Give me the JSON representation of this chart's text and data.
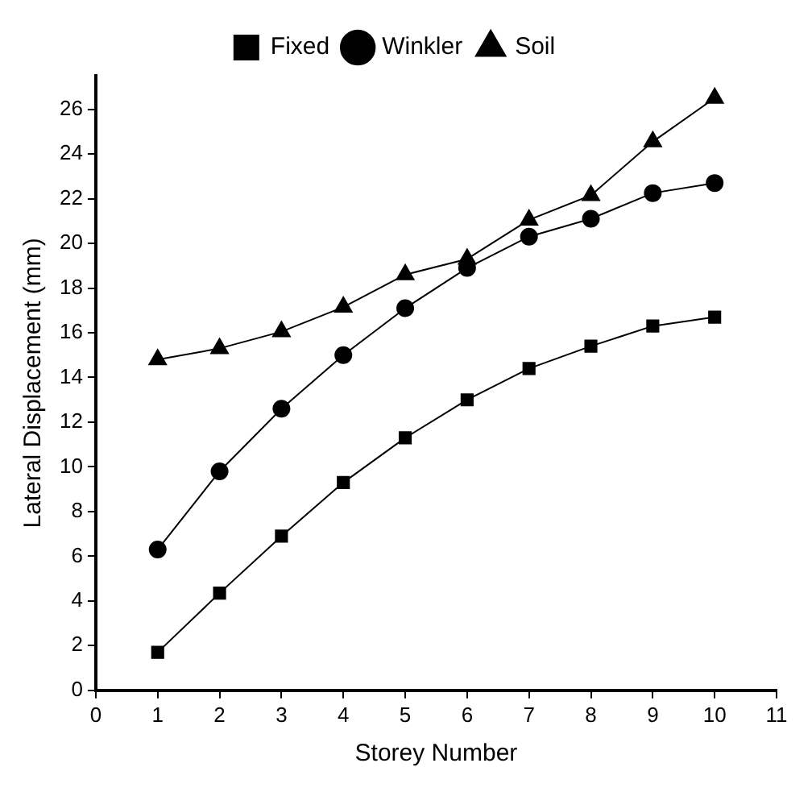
{
  "chart_data": {
    "type": "line",
    "xlabel": "Storey Number",
    "ylabel": "Lateral Displacement (mm)",
    "x": [
      1,
      2,
      3,
      4,
      5,
      6,
      7,
      8,
      9,
      10
    ],
    "series": [
      {
        "name": "Fixed",
        "color": "#000000",
        "marker": "square",
        "values": [
          1.7,
          4.35,
          6.9,
          9.3,
          11.3,
          13.0,
          14.4,
          15.4,
          16.3,
          16.7
        ]
      },
      {
        "name": "Winkler",
        "color": "#000000",
        "marker": "circle",
        "values": [
          6.3,
          9.8,
          12.6,
          15.0,
          17.1,
          18.9,
          20.3,
          21.1,
          22.25,
          22.7
        ]
      },
      {
        "name": "Soil",
        "color": "#000000",
        "marker": "triangle",
        "values": [
          14.8,
          15.3,
          16.05,
          17.15,
          18.6,
          19.3,
          21.05,
          22.15,
          24.55,
          26.5
        ]
      }
    ],
    "xlim": [
      0,
      11
    ],
    "xticks": [
      0,
      1,
      2,
      3,
      4,
      5,
      6,
      7,
      8,
      9,
      10,
      11
    ],
    "ylim": [
      0,
      27.5
    ],
    "yticks": [
      0,
      2,
      4,
      6,
      8,
      10,
      12,
      14,
      16,
      18,
      20,
      22,
      24,
      26
    ],
    "grid": false,
    "legend": "top",
    "line_style": "solid"
  }
}
